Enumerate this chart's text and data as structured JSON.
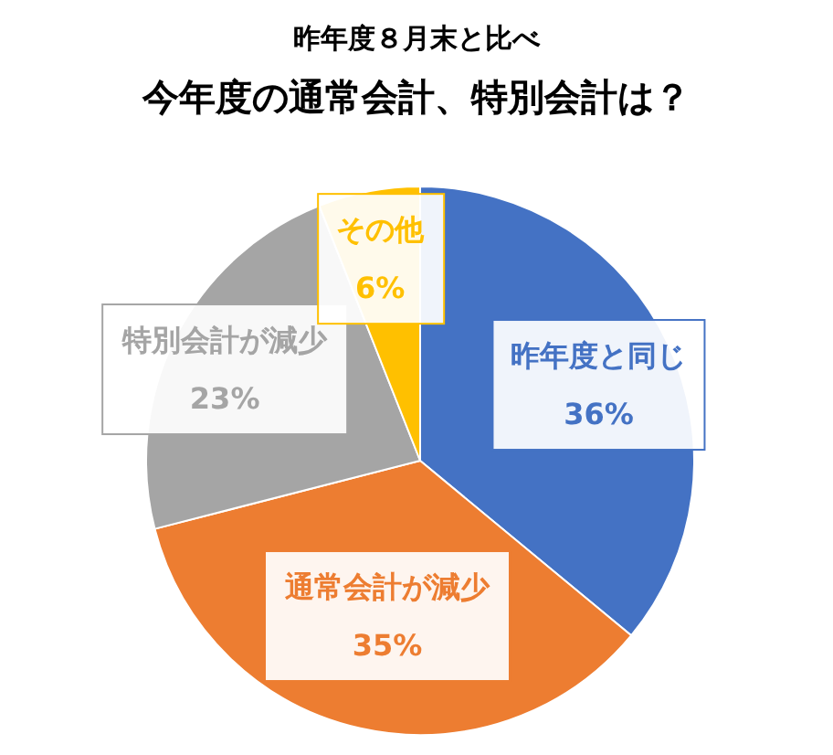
{
  "chart_data": {
    "type": "pie",
    "subtitle": "昨年度８月末と比べ",
    "title": "今年度の通常会計、特別会計は？",
    "categories": [
      "昨年度と同じ",
      "通常会計が減少",
      "特別会計が減少",
      "その他"
    ],
    "values": [
      36,
      35,
      23,
      6
    ],
    "colors": [
      "#4472c4",
      "#ed7d31",
      "#a5a5a5",
      "#ffc000"
    ],
    "value_labels": [
      "36%",
      "35%",
      "23%",
      "6%"
    ]
  }
}
